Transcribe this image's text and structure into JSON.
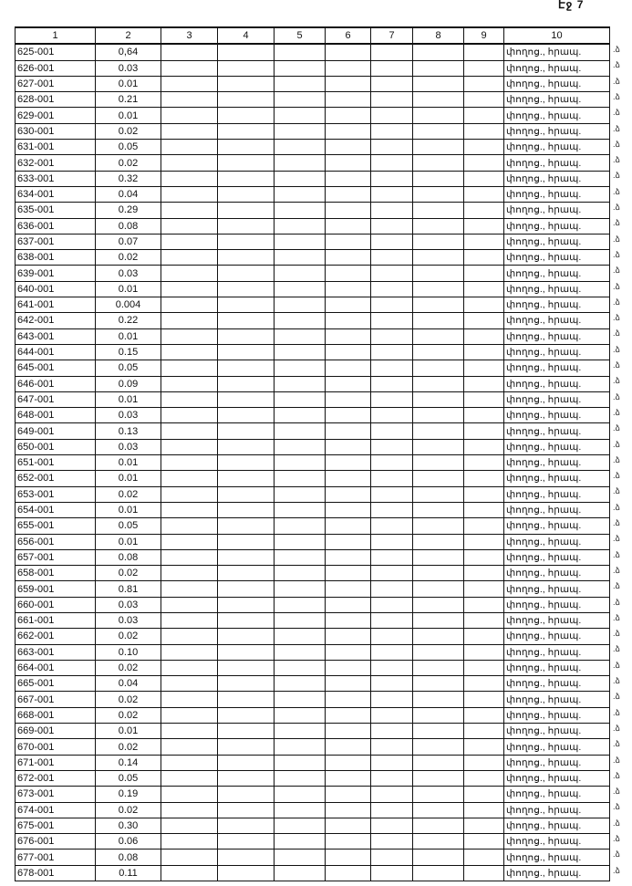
{
  "page_number": "Էջ 7",
  "columns": [
    "1",
    "2",
    "3",
    "4",
    "5",
    "6",
    "7",
    "8",
    "9",
    "10"
  ],
  "row_mark": ".ձ",
  "rows": [
    {
      "id": "625-001",
      "value": "0,64",
      "type": "փողոց., հրապ."
    },
    {
      "id": "626-001",
      "value": "0.03",
      "type": "փողոց., հրապ."
    },
    {
      "id": "627-001",
      "value": "0.01",
      "type": "փողոց., հրապ."
    },
    {
      "id": "628-001",
      "value": "0.21",
      "type": "փողոց., հրապ."
    },
    {
      "id": "629-001",
      "value": "0.01",
      "type": "փողոց., հրապ."
    },
    {
      "id": "630-001",
      "value": "0.02",
      "type": "փողոց., հրապ."
    },
    {
      "id": "631-001",
      "value": "0.05",
      "type": "փողոց., հրապ."
    },
    {
      "id": "632-001",
      "value": "0.02",
      "type": "փողոց., հրապ."
    },
    {
      "id": "633-001",
      "value": "0.32",
      "type": "փողոց., հրապ."
    },
    {
      "id": "634-001",
      "value": "0.04",
      "type": "փողոց., հրապ."
    },
    {
      "id": "635-001",
      "value": "0.29",
      "type": "փողոց., հրապ."
    },
    {
      "id": "636-001",
      "value": "0.08",
      "type": "փողոց., հրապ."
    },
    {
      "id": "637-001",
      "value": "0.07",
      "type": "փողոց., հրապ."
    },
    {
      "id": "638-001",
      "value": "0.02",
      "type": "փողոց., հրապ."
    },
    {
      "id": "639-001",
      "value": "0.03",
      "type": "փողոց., հրապ."
    },
    {
      "id": "640-001",
      "value": "0.01",
      "type": "փողոց., հրապ."
    },
    {
      "id": "641-001",
      "value": "0.004",
      "type": "փողոց., հրապ."
    },
    {
      "id": "642-001",
      "value": "0.22",
      "type": "փողոց., հրապ."
    },
    {
      "id": "643-001",
      "value": "0.01",
      "type": "փողոց., հրապ."
    },
    {
      "id": "644-001",
      "value": "0.15",
      "type": "փողոց., հրապ."
    },
    {
      "id": "645-001",
      "value": "0.05",
      "type": "փողոց., հրապ."
    },
    {
      "id": "646-001",
      "value": "0.09",
      "type": "փողոց., հրապ."
    },
    {
      "id": "647-001",
      "value": "0.01",
      "type": "փողոց., հրապ."
    },
    {
      "id": "648-001",
      "value": "0.03",
      "type": "փողոց., հրապ."
    },
    {
      "id": "649-001",
      "value": "0.13",
      "type": "փողոց., հրապ."
    },
    {
      "id": "650-001",
      "value": "0.03",
      "type": "փողոց., հրապ."
    },
    {
      "id": "651-001",
      "value": "0.01",
      "type": "փողոց., հրապ."
    },
    {
      "id": "652-001",
      "value": "0.01",
      "type": "փողոց., հրապ."
    },
    {
      "id": "653-001",
      "value": "0.02",
      "type": "փողոց., հրապ."
    },
    {
      "id": "654-001",
      "value": "0.01",
      "type": "փողոց., հրապ."
    },
    {
      "id": "655-001",
      "value": "0.05",
      "type": "փողոց., հրապ."
    },
    {
      "id": "656-001",
      "value": "0.01",
      "type": "փողոց., հրապ."
    },
    {
      "id": "657-001",
      "value": "0.08",
      "type": "փողոց., հրապ."
    },
    {
      "id": "658-001",
      "value": "0.02",
      "type": "փողոց., հրապ."
    },
    {
      "id": "659-001",
      "value": "0.81",
      "type": "փողոց., հրապ."
    },
    {
      "id": "660-001",
      "value": "0.03",
      "type": "փողոց., հրապ."
    },
    {
      "id": "661-001",
      "value": "0.03",
      "type": "փողոց., հրապ."
    },
    {
      "id": "662-001",
      "value": "0.02",
      "type": "փողոց., հրապ."
    },
    {
      "id": "663-001",
      "value": "0.10",
      "type": "փողոց., հրապ."
    },
    {
      "id": "664-001",
      "value": "0.02",
      "type": "փողոց., հրապ."
    },
    {
      "id": "665-001",
      "value": "0.04",
      "type": "փողոց., հրապ."
    },
    {
      "id": "667-001",
      "value": "0.02",
      "type": "փողոց., հրապ."
    },
    {
      "id": "668-001",
      "value": "0.02",
      "type": "փողոց., հրապ."
    },
    {
      "id": "669-001",
      "value": "0.01",
      "type": "փողոց., հրապ."
    },
    {
      "id": "670-001",
      "value": "0.02",
      "type": "փողոց., հրապ."
    },
    {
      "id": "671-001",
      "value": "0.14",
      "type": "փողոց., հրապ."
    },
    {
      "id": "672-001",
      "value": "0.05",
      "type": "փողոց., հրապ."
    },
    {
      "id": "673-001",
      "value": "0.19",
      "type": "փողոց., հրապ."
    },
    {
      "id": "674-001",
      "value": "0.02",
      "type": "փողոց., հրապ."
    },
    {
      "id": "675-001",
      "value": "0.30",
      "type": "փողոց., հրապ."
    },
    {
      "id": "676-001",
      "value": "0.06",
      "type": "փողոց., հրապ."
    },
    {
      "id": "677-001",
      "value": "0.08",
      "type": "փողոց., հրապ."
    },
    {
      "id": "678-001",
      "value": "0.11",
      "type": "փողոց., հրապ."
    }
  ]
}
